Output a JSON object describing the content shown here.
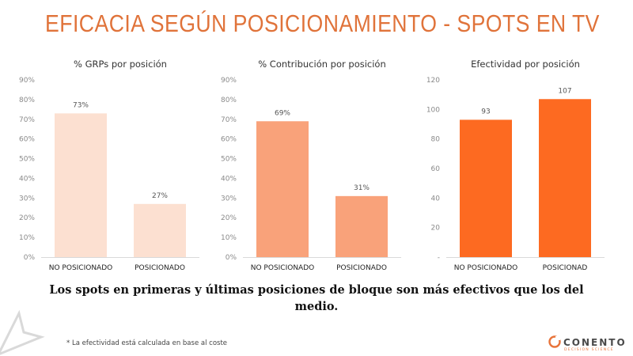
{
  "title": "EFICACIA SEGÚN POSICIONAMIENTO - SPOTS EN TV",
  "chart_data": [
    {
      "type": "bar",
      "title": "% GRPs por posición",
      "categories": [
        "NO POSICIONADO",
        "POSICIONADO"
      ],
      "values": [
        73,
        27
      ],
      "data_labels": [
        "73%",
        "27%"
      ],
      "ylim": [
        0,
        90
      ],
      "yticks": [
        "0%",
        "10%",
        "20%",
        "30%",
        "40%",
        "50%",
        "60%",
        "70%",
        "80%",
        "90%"
      ],
      "color": "#fce0d1",
      "grid": false
    },
    {
      "type": "bar",
      "title": "% Contribución por posición",
      "categories": [
        "NO POSICIONADO",
        "POSICIONADO"
      ],
      "values": [
        69,
        31
      ],
      "data_labels": [
        "69%",
        "31%"
      ],
      "ylim": [
        0,
        90
      ],
      "yticks": [
        "0%",
        "10%",
        "20%",
        "30%",
        "40%",
        "50%",
        "60%",
        "70%",
        "80%",
        "90%"
      ],
      "color": "#f9a27a",
      "grid": false
    },
    {
      "type": "bar",
      "title": "Efectividad por posición",
      "categories": [
        "NO POSICIONADO",
        "POSICIONAD"
      ],
      "values": [
        93,
        107
      ],
      "data_labels": [
        "93",
        "107"
      ],
      "ylim": [
        0,
        120
      ],
      "yticks": [
        "-",
        "20",
        "40",
        "60",
        "80",
        "100",
        "120"
      ],
      "color": "#fd6a21",
      "grid": false
    }
  ],
  "conclusion_line1": "Los spots en primeras y últimas posiciones de bloque son más efectivos que los del",
  "conclusion_line2": "medio.",
  "footnote": "* La efectividad está calculada en base al coste",
  "logo": {
    "name": "CONENTO",
    "tagline": "DECISION SCIENCE",
    "color": "#e8743b"
  }
}
